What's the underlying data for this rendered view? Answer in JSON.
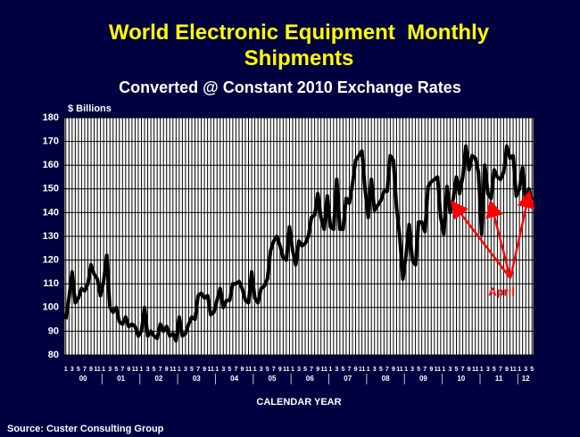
{
  "chart_data": {
    "type": "line",
    "title": "World Electronic Equipment  Monthly Shipments",
    "subtitle": "Converted @ Constant 2010 Exchange Rates",
    "ylabel": "$ Billions",
    "xlabel": "CALENDAR YEAR",
    "source": "Source: Custer Consulting Group",
    "annotation": "April",
    "annotation_color": "#ff0000",
    "categories": [
      "1",
      null,
      "3",
      null,
      "5",
      null,
      "7",
      null,
      "9",
      null,
      "11",
      null,
      "1",
      null,
      "3",
      null,
      "5",
      null,
      "7",
      null,
      "9",
      null,
      "11",
      null,
      "1",
      null,
      "3",
      null,
      "5",
      null,
      "7",
      null,
      "9",
      null,
      "11",
      null,
      "1",
      null,
      "3",
      null,
      "5",
      null,
      "7",
      null,
      "9",
      null,
      "11",
      null,
      "1",
      null,
      "3",
      null,
      "5",
      null,
      "7",
      null,
      "9",
      null,
      "11",
      null,
      "1",
      null,
      "3",
      null,
      "5",
      null,
      "7",
      null,
      "9",
      null,
      "11",
      null,
      "1",
      null,
      "3",
      null,
      "5",
      null,
      "7",
      null,
      "9",
      null,
      "11",
      null,
      "1",
      null,
      "3",
      null,
      "5",
      null,
      "7",
      null,
      "9",
      null,
      "11",
      null,
      "1",
      null,
      "3",
      null,
      "5",
      null,
      "7",
      null,
      "9",
      null,
      "11",
      null,
      "1",
      null,
      "3",
      null,
      "5",
      null,
      "7",
      null,
      "9",
      null,
      "11",
      null,
      "1",
      null,
      "3",
      null,
      "5",
      null,
      "7",
      null,
      "9",
      null,
      "11",
      null,
      "1",
      null,
      "3",
      null,
      "5",
      null,
      "7",
      null,
      "9",
      null,
      "11",
      null,
      "1",
      null,
      "3",
      null,
      "5"
    ],
    "year_labels": [
      "00",
      "01",
      "02",
      "03",
      "04",
      "05",
      "06",
      "07",
      "08",
      "09",
      "10",
      "11",
      "12"
    ],
    "series": [
      {
        "name": "Monthly Shipments",
        "color": "#000000",
        "values": [
          95,
          104,
          115,
          102,
          104,
          108,
          107,
          110,
          118,
          114,
          112,
          105,
          111,
          122,
          100,
          98,
          100,
          94,
          93,
          96,
          92,
          93,
          92,
          88,
          90,
          100,
          88,
          90,
          88,
          87,
          93,
          90,
          92,
          88,
          89,
          86,
          96,
          88,
          89,
          93,
          96,
          95,
          105,
          106,
          104,
          105,
          97,
          98,
          103,
          108,
          100,
          103,
          103,
          110,
          110,
          111,
          108,
          103,
          102,
          115,
          104,
          102,
          108,
          109,
          112,
          124,
          128,
          130,
          126,
          121,
          120,
          134,
          124,
          118,
          128,
          126,
          127,
          130,
          138,
          139,
          148,
          138,
          133,
          147,
          134,
          133,
          154,
          133,
          133,
          146,
          144,
          152,
          162,
          164,
          166,
          150,
          138,
          154,
          141,
          143,
          145,
          149,
          149,
          164,
          162,
          142,
          130,
          112,
          122,
          135,
          120,
          118,
          136,
          136,
          132,
          151,
          153,
          154,
          155,
          138,
          131,
          151,
          140,
          146,
          155,
          148,
          155,
          168,
          158,
          164,
          163,
          157,
          131,
          160,
          148,
          146,
          158,
          155,
          154,
          157,
          168,
          163,
          164,
          147,
          150,
          159,
          144,
          150,
          145
        ]
      }
    ],
    "annotation_points": [
      123,
      135,
      147
    ],
    "ylim": [
      80,
      180
    ],
    "yticks": [
      80,
      90,
      100,
      110,
      120,
      130,
      140,
      150,
      160,
      170,
      180
    ],
    "grid": true
  }
}
